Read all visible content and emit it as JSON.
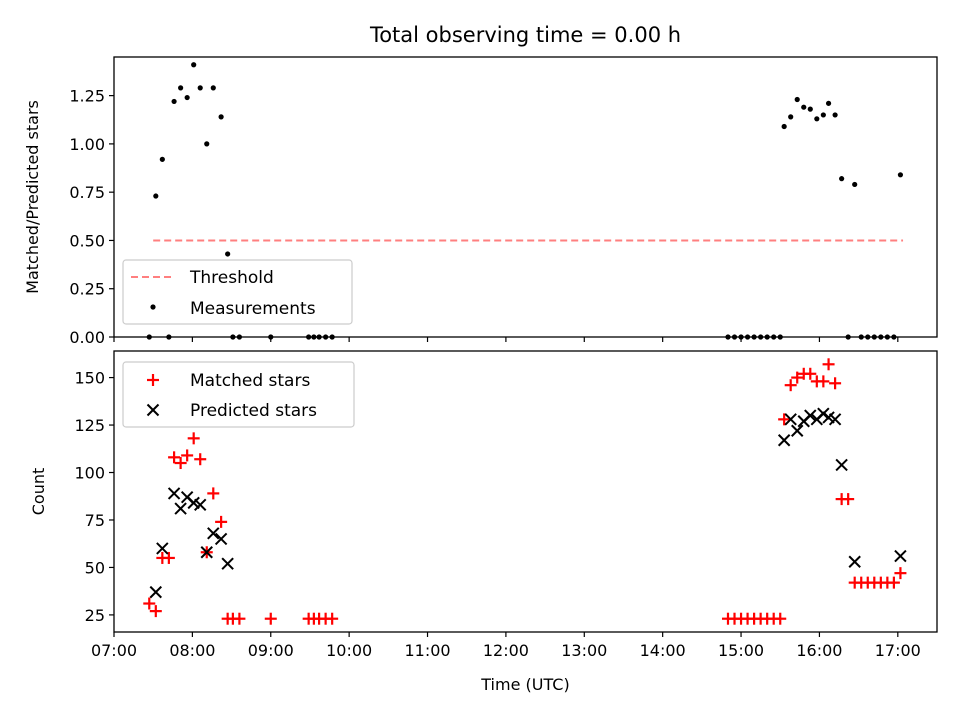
{
  "chart_data": [
    {
      "type": "scatter",
      "title": "Total observing time = 0.00 h",
      "xlabel": "",
      "ylabel": "Matched/Predicted stars",
      "xlim": [
        "07:00",
        "17:30"
      ],
      "ylim": [
        0,
        1.45
      ],
      "yticks": [
        "0.00",
        "0.25",
        "0.50",
        "0.75",
        "1.00",
        "1.25"
      ],
      "legend_position": "lower-left",
      "threshold": {
        "name": "Threshold",
        "value": 0.5,
        "x": [
          "07:30",
          "17:04"
        ],
        "color": "#ff7f7f"
      },
      "series": [
        {
          "name": "Measurements",
          "marker": "dot",
          "color": "#000000",
          "points": [
            [
              "07:27",
              0.0
            ],
            [
              "07:32",
              0.73
            ],
            [
              "07:37",
              0.92
            ],
            [
              "07:42",
              0.0
            ],
            [
              "07:46",
              1.22
            ],
            [
              "07:51",
              1.29
            ],
            [
              "07:56",
              1.24
            ],
            [
              "08:01",
              1.41
            ],
            [
              "08:06",
              1.29
            ],
            [
              "08:11",
              1.0
            ],
            [
              "08:16",
              1.29
            ],
            [
              "08:22",
              1.14
            ],
            [
              "08:27",
              0.43
            ],
            [
              "08:31",
              0.0
            ],
            [
              "08:36",
              0.0
            ],
            [
              "09:00",
              0.0
            ],
            [
              "09:29",
              0.0
            ],
            [
              "09:33",
              0.0
            ],
            [
              "09:37",
              0.0
            ],
            [
              "09:42",
              0.0
            ],
            [
              "09:47",
              0.0
            ],
            [
              "14:50",
              0.0
            ],
            [
              "14:55",
              0.0
            ],
            [
              "15:00",
              0.0
            ],
            [
              "15:05",
              0.0
            ],
            [
              "15:10",
              0.0
            ],
            [
              "15:15",
              0.0
            ],
            [
              "15:20",
              0.0
            ],
            [
              "15:25",
              0.0
            ],
            [
              "15:30",
              0.0
            ],
            [
              "15:33",
              1.09
            ],
            [
              "15:38",
              1.14
            ],
            [
              "15:43",
              1.23
            ],
            [
              "15:48",
              1.19
            ],
            [
              "15:53",
              1.18
            ],
            [
              "15:58",
              1.13
            ],
            [
              "16:03",
              1.15
            ],
            [
              "16:07",
              1.21
            ],
            [
              "16:12",
              1.15
            ],
            [
              "16:17",
              0.82
            ],
            [
              "16:22",
              0.0
            ],
            [
              "16:27",
              0.79
            ],
            [
              "16:32",
              0.0
            ],
            [
              "16:37",
              0.0
            ],
            [
              "16:42",
              0.0
            ],
            [
              "16:47",
              0.0
            ],
            [
              "16:52",
              0.0
            ],
            [
              "16:57",
              0.0
            ],
            [
              "17:02",
              0.84
            ]
          ]
        }
      ]
    },
    {
      "type": "scatter",
      "title": "",
      "xlabel": "Time (UTC)",
      "ylabel": "Count",
      "xlim": [
        "07:00",
        "17:30"
      ],
      "ylim": [
        16,
        164
      ],
      "xticks": [
        "07:00",
        "08:00",
        "09:00",
        "10:00",
        "11:00",
        "12:00",
        "13:00",
        "14:00",
        "15:00",
        "16:00",
        "17:00"
      ],
      "yticks": [
        "25",
        "50",
        "75",
        "100",
        "125",
        "150"
      ],
      "legend_position": "upper-left",
      "series": [
        {
          "name": "Matched stars",
          "marker": "plus",
          "color": "#ff0000",
          "points": [
            [
              "07:27",
              31
            ],
            [
              "07:32",
              27
            ],
            [
              "07:37",
              55
            ],
            [
              "07:42",
              55
            ],
            [
              "07:46",
              108
            ],
            [
              "07:51",
              105
            ],
            [
              "07:56",
              109
            ],
            [
              "08:01",
              118
            ],
            [
              "08:06",
              107
            ],
            [
              "08:11",
              58
            ],
            [
              "08:16",
              89
            ],
            [
              "08:22",
              74
            ],
            [
              "08:27",
              23
            ],
            [
              "08:31",
              23
            ],
            [
              "08:36",
              23
            ],
            [
              "09:00",
              23
            ],
            [
              "09:29",
              23
            ],
            [
              "09:33",
              23
            ],
            [
              "09:37",
              23
            ],
            [
              "09:42",
              23
            ],
            [
              "09:47",
              23
            ],
            [
              "14:50",
              23
            ],
            [
              "14:55",
              23
            ],
            [
              "15:00",
              23
            ],
            [
              "15:05",
              23
            ],
            [
              "15:10",
              23
            ],
            [
              "15:15",
              23
            ],
            [
              "15:20",
              23
            ],
            [
              "15:25",
              23
            ],
            [
              "15:30",
              23
            ],
            [
              "15:33",
              128
            ],
            [
              "15:38",
              146
            ],
            [
              "15:43",
              150
            ],
            [
              "15:48",
              152
            ],
            [
              "15:53",
              152
            ],
            [
              "15:58",
              148
            ],
            [
              "16:03",
              148
            ],
            [
              "16:07",
              157
            ],
            [
              "16:12",
              147
            ],
            [
              "16:17",
              86
            ],
            [
              "16:22",
              86
            ],
            [
              "16:27",
              42
            ],
            [
              "16:32",
              42
            ],
            [
              "16:37",
              42
            ],
            [
              "16:42",
              42
            ],
            [
              "16:47",
              42
            ],
            [
              "16:52",
              42
            ],
            [
              "16:57",
              42
            ],
            [
              "17:02",
              47
            ]
          ]
        },
        {
          "name": "Predicted stars",
          "marker": "x",
          "color": "#000000",
          "points": [
            [
              "07:32",
              37
            ],
            [
              "07:37",
              60
            ],
            [
              "07:46",
              89
            ],
            [
              "07:51",
              81
            ],
            [
              "07:56",
              87
            ],
            [
              "08:01",
              84
            ],
            [
              "08:06",
              83
            ],
            [
              "08:11",
              58
            ],
            [
              "08:16",
              68
            ],
            [
              "08:22",
              65
            ],
            [
              "08:27",
              52
            ],
            [
              "15:33",
              117
            ],
            [
              "15:38",
              128
            ],
            [
              "15:43",
              122
            ],
            [
              "15:48",
              127
            ],
            [
              "15:53",
              130
            ],
            [
              "15:58",
              128
            ],
            [
              "16:03",
              131
            ],
            [
              "16:07",
              129
            ],
            [
              "16:12",
              128
            ],
            [
              "16:17",
              104
            ],
            [
              "16:27",
              53
            ],
            [
              "17:02",
              56
            ]
          ]
        }
      ]
    }
  ]
}
